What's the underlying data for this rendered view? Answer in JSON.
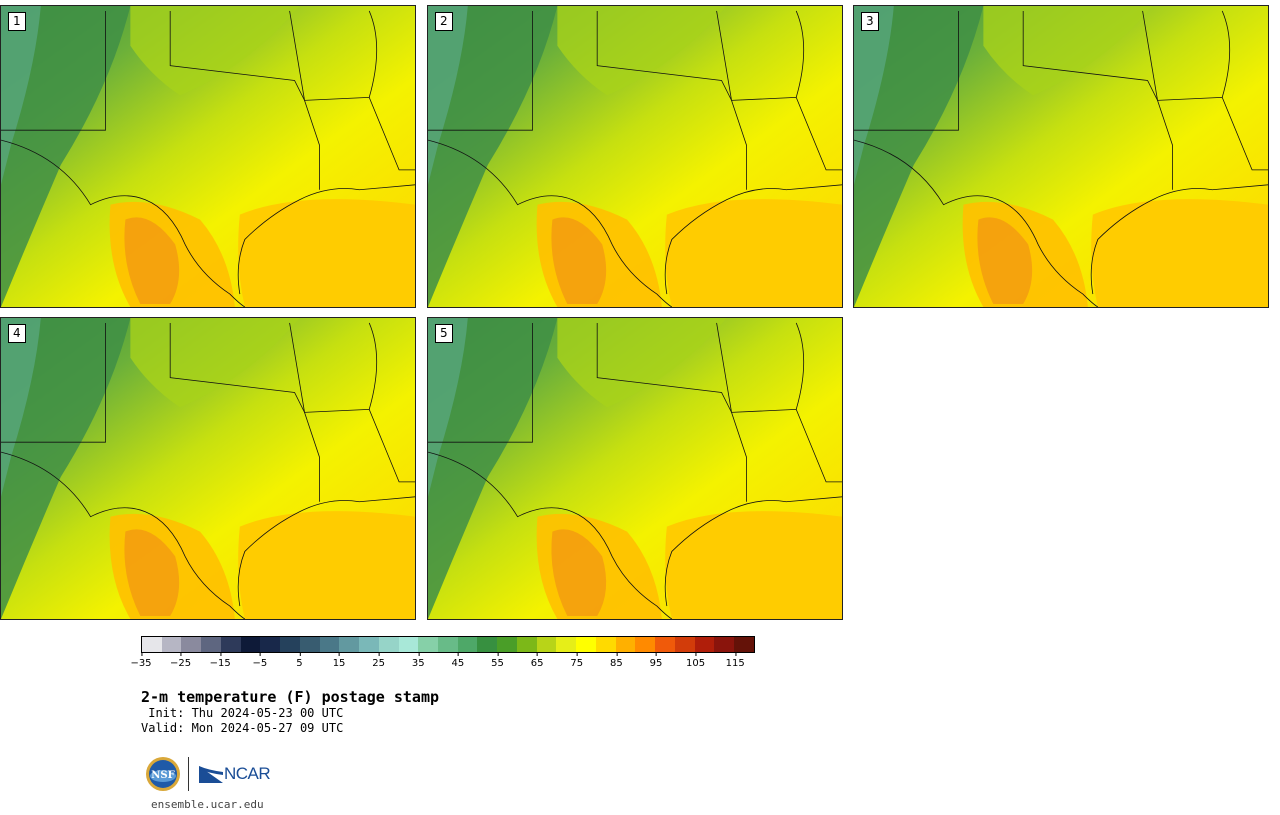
{
  "panels": [
    {
      "label": "1"
    },
    {
      "label": "2"
    },
    {
      "label": "3"
    },
    {
      "label": "4"
    },
    {
      "label": "5"
    }
  ],
  "colorbar": {
    "tick_labels": [
      "−35",
      "−25",
      "−15",
      "−5",
      "5",
      "15",
      "25",
      "35",
      "45",
      "55",
      "65",
      "75",
      "85",
      "95",
      "105",
      "115"
    ],
    "colors": [
      "#e6e6ea",
      "#b6b6c4",
      "#8a8a9e",
      "#5e6680",
      "#2e3a5a",
      "#0e1a38",
      "#18284a",
      "#25415c",
      "#385c70",
      "#4a7888",
      "#6299a0",
      "#7ab8b8",
      "#96d4c8",
      "#a8e8d8",
      "#86d0a8",
      "#68bb88",
      "#4ea868",
      "#379040",
      "#4a9e28",
      "#7cb818",
      "#b8d418",
      "#e6ee18",
      "#ffff00",
      "#ffda00",
      "#ffb000",
      "#ff8a00",
      "#f05a0a",
      "#d23c0a",
      "#b01e0a",
      "#8a140c",
      "#641208"
    ],
    "colors_note": ""
  },
  "title": {
    "main": "2-m temperature (F) postage stamp",
    "init": " Init: Thu 2024-05-23 00 UTC",
    "valid": "Valid: Mon 2024-05-27 09 UTC"
  },
  "logos": {
    "nsf_text": "NSF",
    "ncar_text": "NCAR"
  },
  "footer": {
    "url": "ensemble.ucar.edu"
  }
}
